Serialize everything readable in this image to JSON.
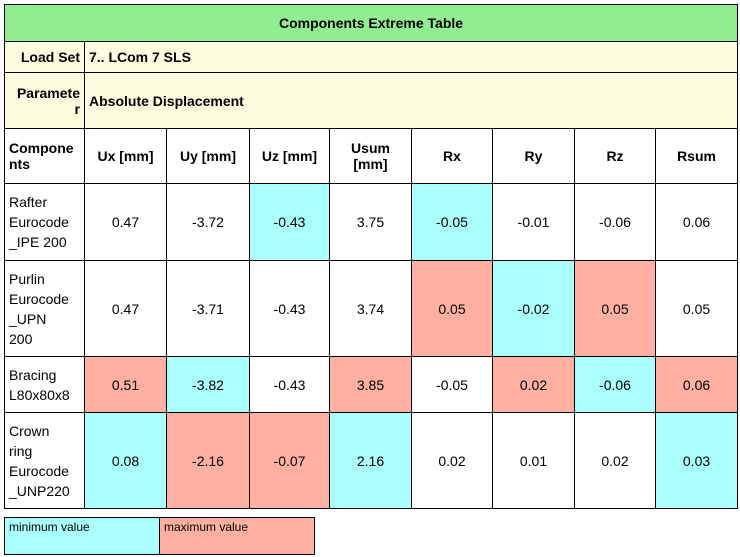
{
  "title": "Components Extreme Table",
  "load_set_label": "Load Set",
  "load_set_value": "7.. LCom 7 SLS",
  "parameter_label_1": "Paramete",
  "parameter_label_2": "r",
  "parameter_value": "Absolute Displacement",
  "headers": {
    "components_1": "Compone",
    "components_2": "nts",
    "ux": "Ux [mm]",
    "uy": "Uy [mm]",
    "uz": "Uz [mm]",
    "usum_1": "Usum",
    "usum_2": "[mm]",
    "rx": "Rx",
    "ry": "Ry",
    "rz": "Rz",
    "rsum": "Rsum"
  },
  "rows": [
    {
      "name": [
        "Rafter",
        "Eurocode",
        "_IPE 200"
      ],
      "ux": "0.47",
      "uy": "-3.72",
      "uz": "-0.43",
      "usum": "3.75",
      "rx": "-0.05",
      "ry": "-0.01",
      "rz": "-0.06",
      "rsum": "0.06"
    },
    {
      "name": [
        "Purlin",
        "Eurocode",
        "_UPN",
        "200"
      ],
      "ux": "0.47",
      "uy": "-3.71",
      "uz": "-0.43",
      "usum": "3.74",
      "rx": "0.05",
      "ry": "-0.02",
      "rz": "0.05",
      "rsum": "0.05"
    },
    {
      "name": [
        "Bracing",
        "L80x80x8"
      ],
      "ux": "0.51",
      "uy": "-3.82",
      "uz": "-0.43",
      "usum": "3.85",
      "rx": "-0.05",
      "ry": "0.02",
      "rz": "-0.06",
      "rsum": "0.06"
    },
    {
      "name": [
        "Crown",
        "ring",
        "Eurocode",
        "_UNP220"
      ],
      "ux": "0.08",
      "uy": "-2.16",
      "uz": "-0.07",
      "usum": "2.16",
      "rx": "0.02",
      "ry": "0.01",
      "rz": "0.02",
      "rsum": "0.03"
    }
  ],
  "legend": {
    "min_label": "minimum value",
    "max_label": "maximum value"
  },
  "colors": {
    "title_bg": "#90ee90",
    "info_bg": "#fffde0",
    "min": "#aaffff",
    "max": "#ffb0a0"
  }
}
